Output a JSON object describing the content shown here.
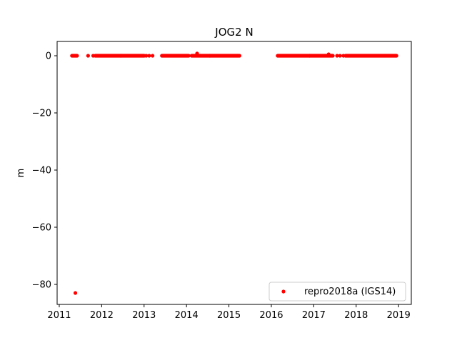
{
  "chart_data": {
    "type": "scatter",
    "title": "JOG2 N",
    "xlabel": "",
    "ylabel": "m",
    "xlim": [
      2010.95,
      2019.3
    ],
    "ylim": [
      -87,
      5
    ],
    "xticks": [
      2011,
      2012,
      2013,
      2014,
      2015,
      2016,
      2017,
      2018,
      2019
    ],
    "xtick_labels": [
      "2011",
      "2012",
      "2013",
      "2014",
      "2015",
      "2016",
      "2017",
      "2018",
      "2019"
    ],
    "yticks": [
      0,
      -20,
      -40,
      -60,
      -80
    ],
    "ytick_labels": [
      "0",
      "−20",
      "−40",
      "−60",
      "−80"
    ],
    "grid": false,
    "legend_position": "lower-right",
    "series": [
      {
        "name": "repro2018a (IGS14)",
        "color": "#ff0000",
        "marker": "circle",
        "segments": [
          {
            "x_start": 2011.3,
            "x_end": 2011.42,
            "y": 0.0
          },
          {
            "x_start": 2011.85,
            "x_end": 2012.45,
            "y": 0.0
          },
          {
            "x_start": 2012.45,
            "x_end": 2013.0,
            "y": 0.0
          },
          {
            "x_start": 2013.42,
            "x_end": 2014.05,
            "y": 0.0
          },
          {
            "x_start": 2014.12,
            "x_end": 2014.55,
            "y": 0.0
          },
          {
            "x_start": 2014.55,
            "x_end": 2015.25,
            "y": 0.0
          },
          {
            "x_start": 2016.15,
            "x_end": 2016.9,
            "y": 0.0
          },
          {
            "x_start": 2016.9,
            "x_end": 2017.45,
            "y": 0.0
          },
          {
            "x_start": 2017.75,
            "x_end": 2018.95,
            "y": 0.0
          }
        ],
        "points": [
          {
            "x": 2011.38,
            "y": -83.0
          },
          {
            "x": 2011.68,
            "y": 0.0
          },
          {
            "x": 2011.8,
            "y": 0.0
          },
          {
            "x": 2013.05,
            "y": 0.0
          },
          {
            "x": 2013.12,
            "y": 0.0
          },
          {
            "x": 2013.2,
            "y": 0.0
          },
          {
            "x": 2014.25,
            "y": 0.8
          },
          {
            "x": 2017.35,
            "y": 0.5
          },
          {
            "x": 2017.55,
            "y": 0.0
          },
          {
            "x": 2017.62,
            "y": 0.0
          },
          {
            "x": 2017.7,
            "y": 0.0
          }
        ]
      }
    ]
  }
}
